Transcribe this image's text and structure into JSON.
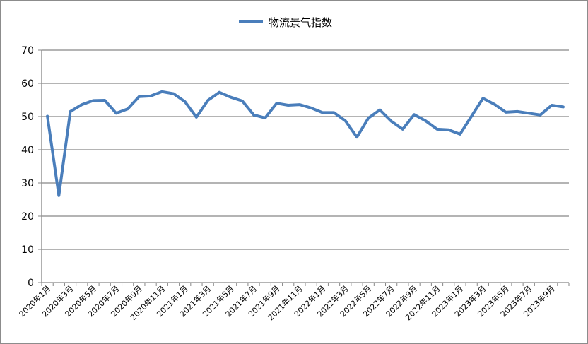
{
  "chart_data": {
    "type": "line",
    "title": "",
    "xlabel": "",
    "ylabel": "",
    "ylim": [
      0,
      70
    ],
    "yticks": [
      0,
      10,
      20,
      30,
      40,
      50,
      60,
      70
    ],
    "grid": true,
    "legend_position": "top-center",
    "categories": [
      "2020年1月",
      "2020年2月",
      "2020年3月",
      "2020年4月",
      "2020年5月",
      "2020年6月",
      "2020年7月",
      "2020年8月",
      "2020年9月",
      "2020年10月",
      "2020年11月",
      "2020年12月",
      "2021年1月",
      "2021年2月",
      "2021年3月",
      "2021年4月",
      "2021年5月",
      "2021年6月",
      "2021年7月",
      "2021年8月",
      "2021年9月",
      "2021年10月",
      "2021年11月",
      "2021年12月",
      "2022年1月",
      "2022年2月",
      "2022年3月",
      "2022年4月",
      "2022年5月",
      "2022年6月",
      "2022年7月",
      "2022年8月",
      "2022年9月",
      "2022年10月",
      "2022年11月",
      "2022年12月",
      "2023年1月",
      "2023年2月",
      "2023年3月",
      "2023年4月",
      "2023年5月",
      "2023年6月",
      "2023年7月",
      "2023年8月",
      "2023年9月",
      "2023年10月"
    ],
    "tick_labels": [
      "2020年1月",
      "2020年3月",
      "2020年5月",
      "2020年7月",
      "2020年9月",
      "2020年11月",
      "2021年1月",
      "2021年3月",
      "2021年5月",
      "2021年7月",
      "2021年9月",
      "2021年11月",
      "2022年1月",
      "2022年3月",
      "2022年5月",
      "2022年7月",
      "2022年9月",
      "2022年11月",
      "2023年1月",
      "2023年3月",
      "2023年5月",
      "2023年7月",
      "2023年9月"
    ],
    "series": [
      {
        "name": "物流景气指数",
        "color": "#4a7ebb",
        "values": [
          50.1,
          26.2,
          51.5,
          53.6,
          54.8,
          54.9,
          51.0,
          52.3,
          56.0,
          56.2,
          57.5,
          56.9,
          54.5,
          49.8,
          54.9,
          57.3,
          55.8,
          54.7,
          50.5,
          49.6,
          54.0,
          53.4,
          53.6,
          52.6,
          51.2,
          51.2,
          48.7,
          43.8,
          49.5,
          52.0,
          48.6,
          46.2,
          50.6,
          48.7,
          46.2,
          46.0,
          44.7,
          50.1,
          55.5,
          53.7,
          51.3,
          51.5,
          51.0,
          50.5,
          53.4,
          52.9
        ]
      }
    ]
  }
}
